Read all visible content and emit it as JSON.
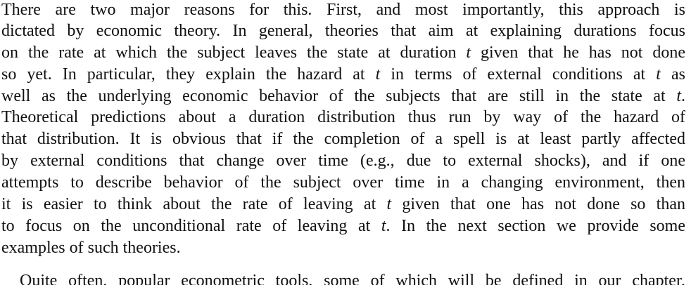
{
  "document": {
    "lines": [
      [
        "There are two major reasons for this. First, and most importantly, this approach is"
      ],
      [
        "dictated by economic theory. In general, theories that aim at explaining durations focus"
      ],
      [
        "on the rate at which the subject leaves the state at duration ",
        "t",
        " given that he has not done"
      ],
      [
        "so yet. In particular, they explain the hazard at ",
        "t",
        " in terms of external conditions at ",
        "t",
        " as"
      ],
      [
        "well as the underlying economic behavior of the subjects that are still in the state at ",
        "t",
        "."
      ],
      [
        "Theoretical predictions about a duration distribution thus run by way of the hazard of"
      ],
      [
        "that distribution. It is obvious that if the completion of a spell is at least partly affected"
      ],
      [
        "by external conditions that change over time (e.g., due to external shocks), and if one"
      ],
      [
        "attempts to describe behavior of the subject over time in a changing environment, then"
      ],
      [
        "it is easier to think about the rate of leaving at ",
        "t",
        " given that one has not done so than"
      ],
      [
        "to focus on the unconditional rate of leaving at ",
        "t",
        ". In the next section we provide some"
      ],
      [
        "examples of such theories."
      ],
      [
        "Quite often, popular econometric tools, some of which will be defined in our chapter,"
      ]
    ]
  }
}
